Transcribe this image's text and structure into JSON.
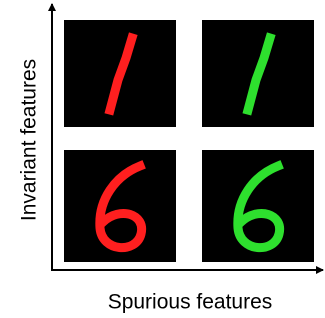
{
  "axes": {
    "y_label": "Invariant features",
    "x_label": "Spurious features"
  }
}
